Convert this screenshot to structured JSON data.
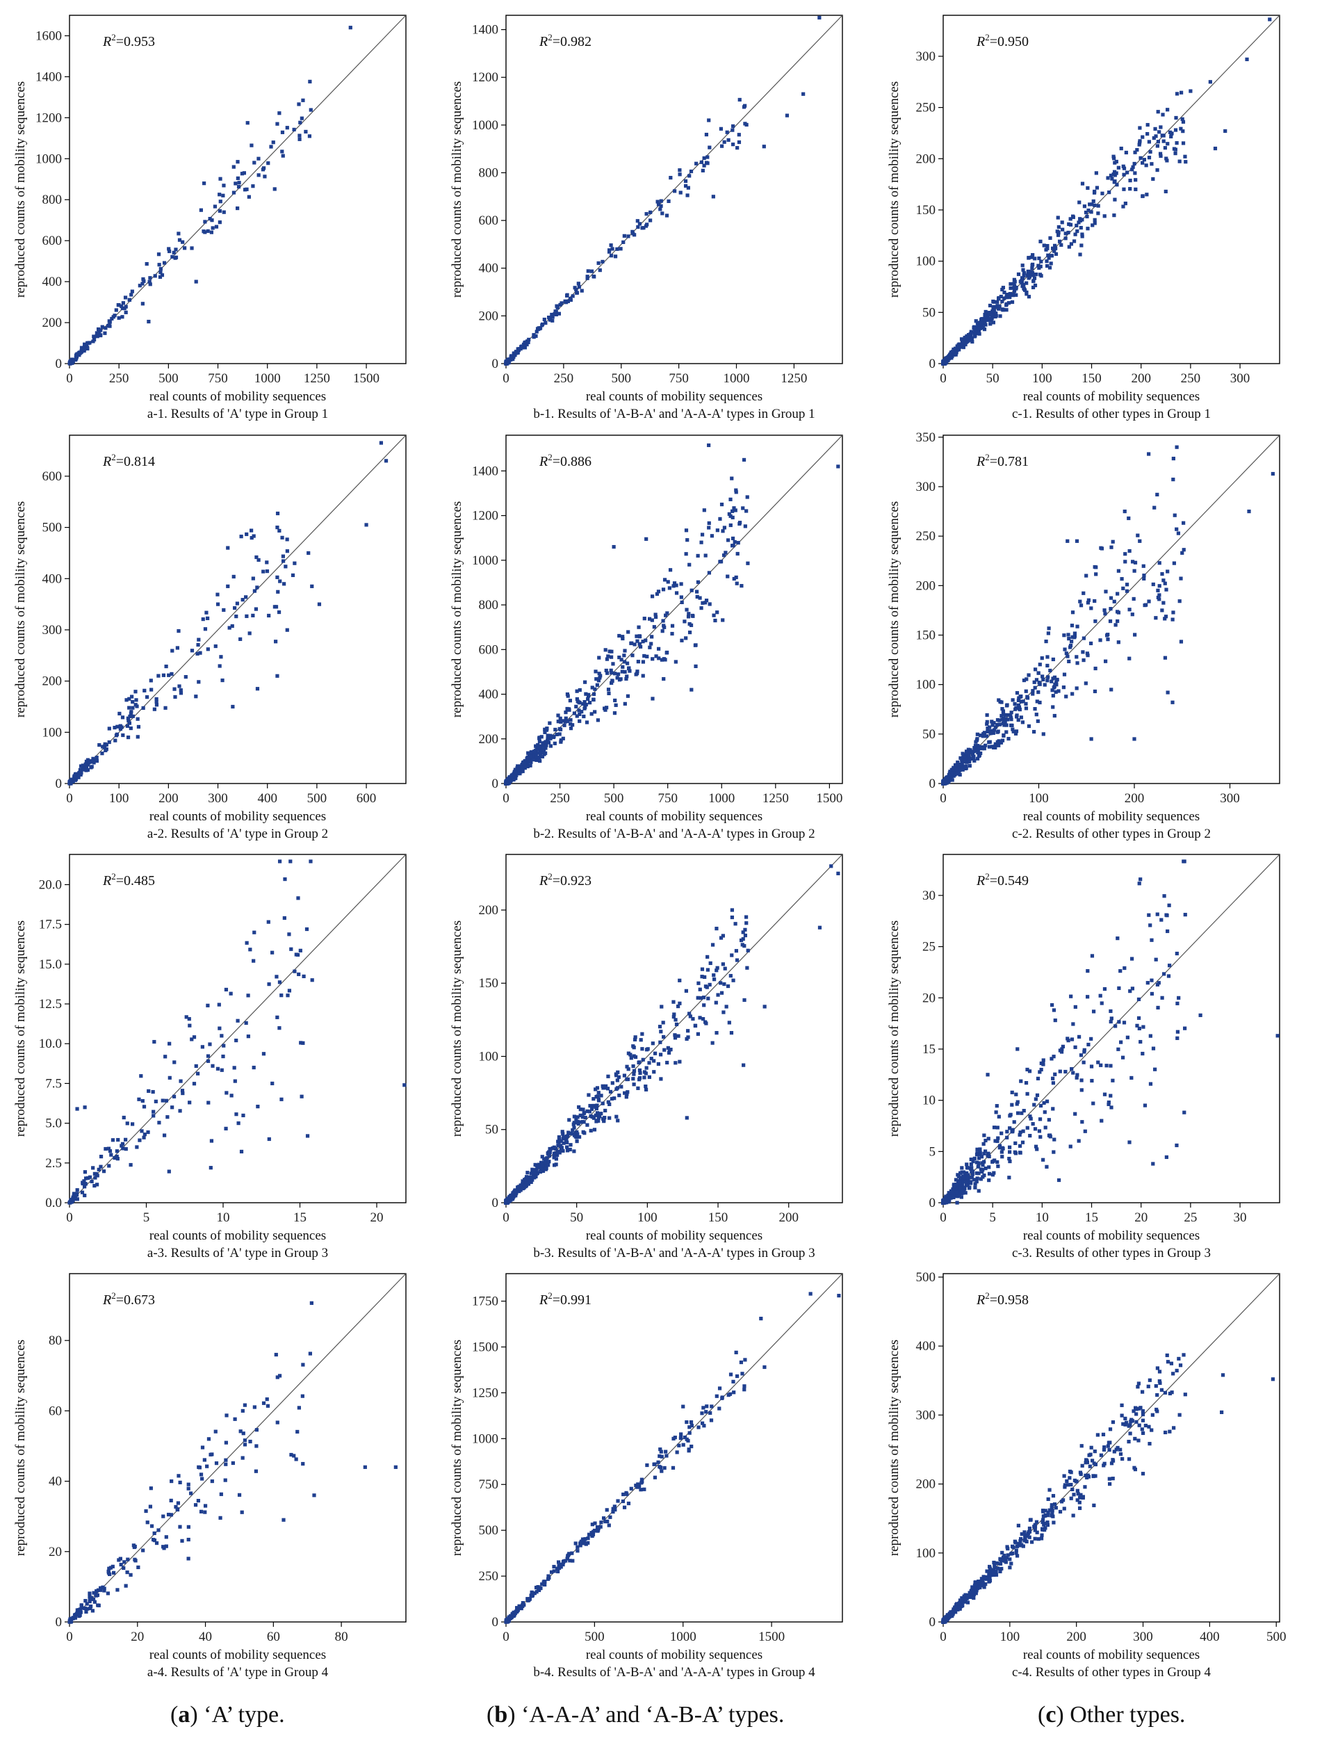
{
  "figure_labels": [
    {
      "letter": "a",
      "text": " ‘A’ type."
    },
    {
      "letter": "b",
      "text": " ‘A-A-A’ and ‘A-B-A’ types."
    },
    {
      "letter": "c",
      "text": " Other types."
    }
  ],
  "chart_data": [
    {
      "type": "scatter",
      "xlabel": "real counts of mobility sequences",
      "ylabel": "reproduced counts of mobility sequences",
      "caption": "a-1. Results of 'A' type in Group 1",
      "r2": "0.953",
      "lim": 1700,
      "xticks": [
        0,
        250,
        500,
        750,
        1000,
        1250,
        1500
      ],
      "yticks": [
        0,
        200,
        400,
        600,
        800,
        1000,
        1200,
        1400,
        1600
      ],
      "n_points": 170,
      "seed": 11,
      "spread": 0.14,
      "skew": 2.2,
      "notable_points": [
        [
          1420,
          1640
        ],
        [
          1180,
          1285
        ],
        [
          1050,
          1170
        ],
        [
          900,
          1175
        ],
        [
          1030,
          1080
        ],
        [
          920,
          1065
        ],
        [
          850,
          985
        ],
        [
          830,
          960
        ],
        [
          760,
          745
        ],
        [
          720,
          700
        ],
        [
          760,
          690
        ],
        [
          640,
          400
        ],
        [
          400,
          205
        ],
        [
          680,
          880
        ]
      ]
    },
    {
      "type": "scatter",
      "xlabel": "real counts of mobility sequences",
      "ylabel": "reproduced counts of mobility sequences",
      "caption": "b-1. Results of 'A-B-A' and 'A-A-A' types in Group 1",
      "r2": "0.982",
      "lim": 1460,
      "xticks": [
        0,
        250,
        500,
        750,
        1000,
        1250
      ],
      "yticks": [
        0,
        200,
        400,
        600,
        800,
        1000,
        1200,
        1400
      ],
      "n_points": 220,
      "seed": 22,
      "spread": 0.08,
      "skew": 2.6,
      "notable_points": [
        [
          1360,
          1450
        ],
        [
          1290,
          1130
        ],
        [
          1220,
          1040
        ],
        [
          1120,
          910
        ],
        [
          880,
          1020
        ],
        [
          870,
          960
        ],
        [
          900,
          700
        ],
        [
          875,
          840
        ],
        [
          860,
          830
        ],
        [
          780,
          745
        ]
      ]
    },
    {
      "type": "scatter",
      "xlabel": "real counts of mobility sequences",
      "ylabel": "reproduced counts of mobility sequences",
      "caption": "c-1. Results of other types in Group 1",
      "r2": "0.950",
      "lim": 340,
      "xticks": [
        0,
        50,
        100,
        150,
        200,
        250,
        300
      ],
      "yticks": [
        0,
        50,
        100,
        150,
        200,
        250,
        300
      ],
      "n_points": 650,
      "seed": 33,
      "spread": 0.17,
      "skew": 3.2,
      "notable_points": [
        [
          330,
          336
        ],
        [
          307,
          297
        ],
        [
          270,
          275
        ],
        [
          250,
          266
        ],
        [
          285,
          227
        ],
        [
          275,
          210
        ],
        [
          245,
          197
        ],
        [
          222,
          243
        ],
        [
          225,
          168
        ],
        [
          215,
          222
        ],
        [
          235,
          228
        ],
        [
          180,
          210
        ],
        [
          185,
          206
        ]
      ]
    },
    {
      "type": "scatter",
      "xlabel": "real counts of mobility sequences",
      "ylabel": "reproduced counts of mobility sequences",
      "caption": "a-2. Results of 'A' type in Group 2",
      "r2": "0.814",
      "lim": 680,
      "xticks": [
        0,
        100,
        200,
        300,
        400,
        500,
        600
      ],
      "yticks": [
        0,
        100,
        200,
        300,
        400,
        500,
        600
      ],
      "n_points": 200,
      "seed": 44,
      "spread": 0.28,
      "skew": 1.8,
      "notable_points": [
        [
          630,
          665
        ],
        [
          640,
          630
        ],
        [
          600,
          505
        ],
        [
          505,
          350
        ],
        [
          490,
          385
        ],
        [
          420,
          500
        ],
        [
          430,
          480
        ],
        [
          455,
          430
        ],
        [
          418,
          345
        ],
        [
          415,
          345
        ],
        [
          420,
          210
        ],
        [
          380,
          185
        ],
        [
          320,
          460
        ],
        [
          320,
          385
        ],
        [
          300,
          350
        ],
        [
          330,
          150
        ]
      ]
    },
    {
      "type": "scatter",
      "xlabel": "real counts of mobility sequences",
      "ylabel": "reproduced counts of mobility sequences",
      "caption": "b-2. Results of 'A-B-A' and 'A-A-A' types in Group 2",
      "r2": "0.886",
      "lim": 1560,
      "xticks": [
        0,
        250,
        500,
        750,
        1000,
        1250,
        1500
      ],
      "yticks": [
        0,
        200,
        400,
        600,
        800,
        1000,
        1200,
        1400
      ],
      "n_points": 650,
      "seed": 55,
      "spread": 0.25,
      "skew": 3.0,
      "notable_points": [
        [
          1540,
          1420
        ],
        [
          940,
          1515
        ],
        [
          1030,
          1090
        ],
        [
          650,
          1095
        ],
        [
          500,
          1060
        ],
        [
          890,
          1020
        ],
        [
          850,
          980
        ],
        [
          970,
          730
        ],
        [
          930,
          820
        ],
        [
          680,
          380
        ],
        [
          860,
          420
        ],
        [
          880,
          620
        ],
        [
          880,
          525
        ]
      ]
    },
    {
      "type": "scatter",
      "xlabel": "real counts of mobility sequences",
      "ylabel": "reproduced counts of mobility sequences",
      "caption": "c-2. Results of other types in Group 2",
      "r2": "0.781",
      "lim": 352,
      "xticks": [
        0,
        100,
        200,
        300
      ],
      "yticks": [
        0,
        50,
        100,
        150,
        200,
        250,
        300,
        350
      ],
      "n_points": 700,
      "seed": 66,
      "spread": 0.33,
      "skew": 3.2,
      "notable_points": [
        [
          215,
          333
        ],
        [
          345,
          313
        ],
        [
          320,
          275
        ],
        [
          190,
          275
        ],
        [
          250,
          233
        ],
        [
          195,
          235
        ],
        [
          165,
          238
        ],
        [
          140,
          245
        ],
        [
          130,
          245
        ],
        [
          210,
          207
        ],
        [
          225,
          188
        ],
        [
          240,
          82
        ],
        [
          235,
          92
        ],
        [
          200,
          45
        ],
        [
          155,
          45
        ]
      ]
    },
    {
      "type": "scatter",
      "xlabel": "real counts of mobility sequences",
      "ylabel": "reproduced counts of mobility sequences",
      "caption": "a-3. Results of 'A' type in Group 3",
      "r2": "0.485",
      "lim": 21.9,
      "xticks": [
        0,
        5,
        10,
        15,
        20
      ],
      "yticks": [
        0,
        2.5,
        5.0,
        7.5,
        10.0,
        12.5,
        15.0,
        17.5,
        20.0
      ],
      "yfmt": 1,
      "n_points": 170,
      "seed": 77,
      "spread": 0.55,
      "skew": 1.8,
      "notable_points": [
        [
          21.8,
          7.4
        ],
        [
          15.8,
          14.0
        ],
        [
          10.2,
          13.4
        ],
        [
          11.5,
          11.3
        ],
        [
          9.0,
          12.4
        ],
        [
          6.5,
          10.0
        ],
        [
          15.5,
          4.2
        ],
        [
          13.0,
          4.0
        ],
        [
          13.8,
          6.5
        ],
        [
          12.0,
          8.5
        ],
        [
          13.2,
          7.5
        ],
        [
          9.2,
          2.2
        ],
        [
          11.0,
          5.0
        ],
        [
          10.0,
          9.2
        ],
        [
          0.5,
          5.9
        ],
        [
          1.0,
          6.0
        ]
      ]
    },
    {
      "type": "scatter",
      "xlabel": "real counts of mobility sequences",
      "ylabel": "reproduced counts of mobility sequences",
      "caption": "b-3. Results of 'A-B-A' and 'A-A-A' types in Group 3",
      "r2": "0.923",
      "lim": 238,
      "xticks": [
        0,
        50,
        100,
        150,
        200
      ],
      "yticks": [
        0,
        50,
        100,
        150,
        200
      ],
      "n_points": 650,
      "seed": 88,
      "spread": 0.2,
      "skew": 3.0,
      "notable_points": [
        [
          230,
          230
        ],
        [
          235,
          225
        ],
        [
          222,
          188
        ],
        [
          160,
          200
        ],
        [
          160,
          195
        ],
        [
          155,
          160
        ],
        [
          183,
          134
        ],
        [
          168,
          94
        ],
        [
          128,
          58
        ],
        [
          150,
          142
        ],
        [
          140,
          135
        ],
        [
          120,
          125
        ]
      ]
    },
    {
      "type": "scatter",
      "xlabel": "real counts of mobility sequences",
      "ylabel": "reproduced counts of mobility sequences",
      "caption": "c-3. Results of other types in Group 3",
      "r2": "0.549",
      "lim": 34,
      "xticks": [
        0,
        5,
        10,
        15,
        20,
        25,
        30
      ],
      "yticks": [
        0,
        5,
        10,
        15,
        20,
        25,
        30
      ],
      "n_points": 650,
      "seed": 99,
      "spread": 0.55,
      "skew": 3.6,
      "notable_points": [
        [
          33.8,
          16.3
        ],
        [
          26.0,
          18.3
        ],
        [
          23.6,
          5.6
        ],
        [
          21.2,
          3.8
        ],
        [
          11.0,
          19.3
        ],
        [
          11.2,
          18.8
        ],
        [
          17.0,
          9.3
        ],
        [
          16.0,
          8.0
        ],
        [
          14.0,
          11.0
        ],
        [
          13.5,
          12.2
        ],
        [
          15.0,
          13.3
        ],
        [
          12.0,
          15.0
        ],
        [
          8.5,
          13.0
        ],
        [
          7.5,
          15.0
        ],
        [
          4.5,
          12.5
        ]
      ]
    },
    {
      "type": "scatter",
      "xlabel": "real counts of mobility sequences",
      "ylabel": "reproduced counts of mobility sequences",
      "caption": "a-4. Results of 'A' type in Group 4",
      "r2": "0.673",
      "lim": 99,
      "xticks": [
        0,
        20,
        40,
        60,
        80
      ],
      "yticks": [
        0,
        20,
        40,
        60,
        80
      ],
      "n_points": 170,
      "seed": 111,
      "spread": 0.33,
      "skew": 1.8,
      "notable_points": [
        [
          96,
          44
        ],
        [
          87,
          44
        ],
        [
          72,
          36
        ],
        [
          63,
          29
        ],
        [
          51,
          60
        ],
        [
          55,
          50
        ],
        [
          46,
          46
        ],
        [
          41,
          52
        ],
        [
          42,
          40
        ],
        [
          38,
          44
        ],
        [
          30,
          40
        ],
        [
          24,
          38
        ],
        [
          35,
          18
        ],
        [
          40,
          33
        ]
      ]
    },
    {
      "type": "scatter",
      "xlabel": "real counts of mobility sequences",
      "ylabel": "reproduced counts of mobility sequences",
      "caption": "b-4. Results of 'A-B-A' and 'A-A-A' types in Group 4",
      "r2": "0.991",
      "lim": 1900,
      "xticks": [
        0,
        500,
        1000,
        1500
      ],
      "yticks": [
        0,
        250,
        500,
        750,
        1000,
        1250,
        1500,
        1750
      ],
      "n_points": 230,
      "seed": 122,
      "spread": 0.07,
      "skew": 1.9,
      "notable_points": [
        [
          1720,
          1790
        ],
        [
          1880,
          1780
        ],
        [
          1440,
          1655
        ],
        [
          1350,
          1430
        ],
        [
          1300,
          1470
        ],
        [
          1270,
          1350
        ],
        [
          1460,
          1390
        ],
        [
          1220,
          1220
        ],
        [
          1160,
          1100
        ],
        [
          1020,
          1090
        ],
        [
          1000,
          1175
        ]
      ]
    },
    {
      "type": "scatter",
      "xlabel": "real counts of mobility sequences",
      "ylabel": "reproduced counts of mobility sequences",
      "caption": "c-4. Results of other types in Group 4",
      "r2": "0.958",
      "lim": 505,
      "xticks": [
        0,
        100,
        200,
        300,
        400,
        500
      ],
      "yticks": [
        0,
        100,
        200,
        300,
        400,
        500
      ],
      "n_points": 520,
      "seed": 133,
      "spread": 0.16,
      "skew": 2.6,
      "notable_points": [
        [
          495,
          352
        ],
        [
          420,
          358
        ],
        [
          418,
          304
        ],
        [
          345,
          360
        ],
        [
          340,
          276
        ],
        [
          320,
          308
        ],
        [
          270,
          287
        ],
        [
          290,
          290
        ],
        [
          300,
          215
        ],
        [
          250,
          200
        ],
        [
          260,
          250
        ],
        [
          210,
          180
        ]
      ]
    }
  ]
}
